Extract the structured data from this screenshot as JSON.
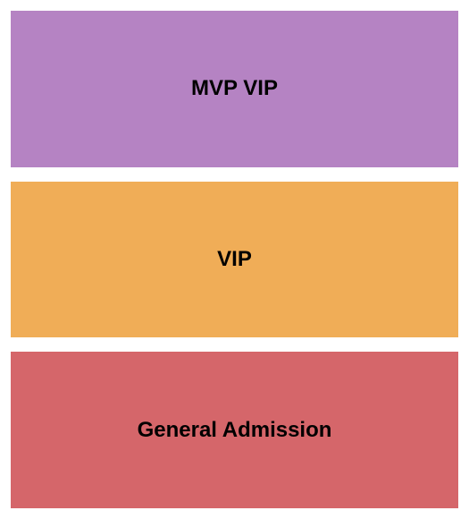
{
  "seating_chart": {
    "type": "infographic",
    "background_color": "#ffffff",
    "container_padding": 12,
    "section_gap": 16,
    "label_fontsize": 24,
    "label_fontweight": "bold",
    "label_color": "#000000",
    "sections": [
      {
        "id": "mvp-vip",
        "label": "MVP VIP",
        "background_color": "#b583c3"
      },
      {
        "id": "vip",
        "label": "VIP",
        "background_color": "#f0ad57"
      },
      {
        "id": "general-admission",
        "label": "General Admission",
        "background_color": "#d5666a"
      }
    ]
  }
}
